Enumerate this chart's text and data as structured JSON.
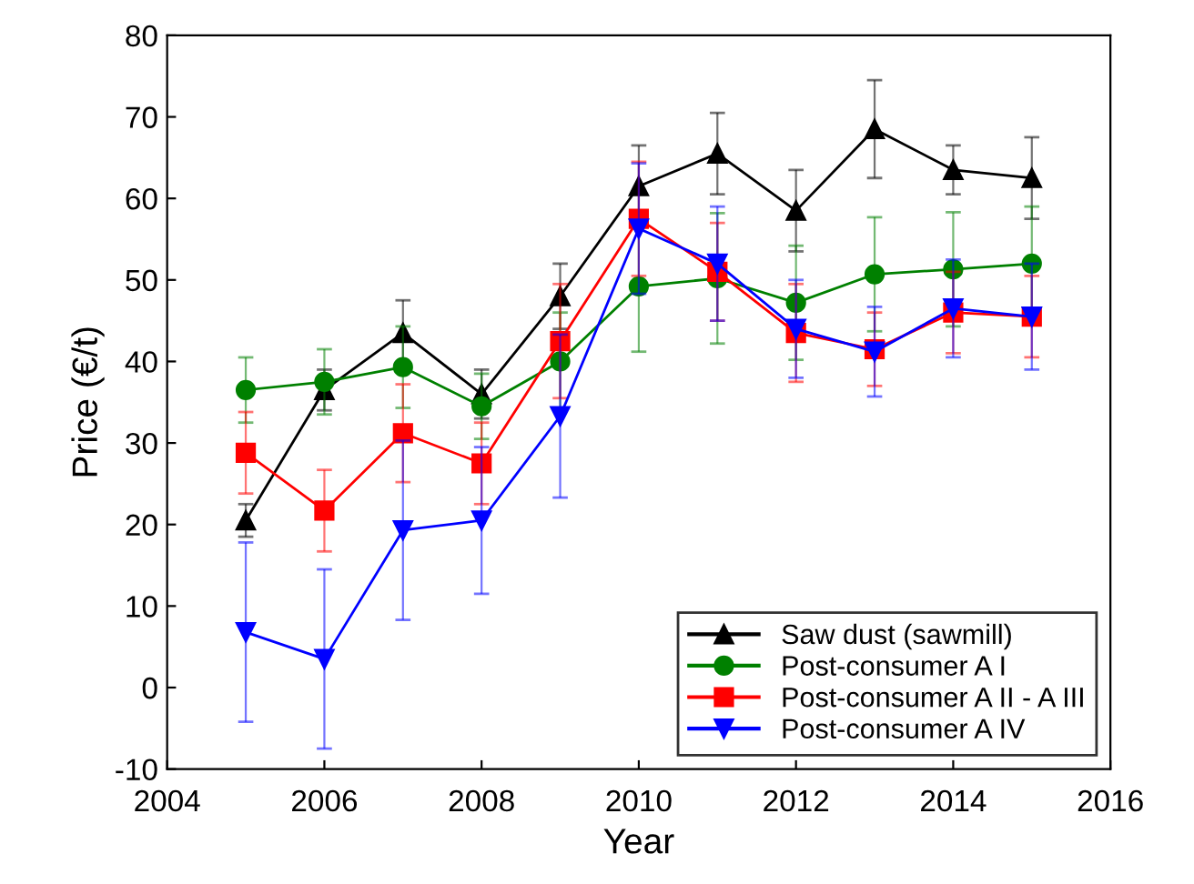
{
  "chart_data": {
    "type": "line",
    "xlabel": "Year",
    "ylabel": "Price (€/t)",
    "x": [
      2005,
      2006,
      2007,
      2008,
      2009,
      2010,
      2011,
      2012,
      2013,
      2014,
      2015
    ],
    "xlim": [
      2004,
      2016
    ],
    "xticks": [
      2004,
      2006,
      2008,
      2010,
      2012,
      2014,
      2016
    ],
    "ylim": [
      -10,
      80
    ],
    "yticks": [
      -10,
      0,
      10,
      20,
      30,
      40,
      50,
      60,
      70,
      80
    ],
    "grid": false,
    "legend": "bottom right",
    "line_style": "solid",
    "series": [
      {
        "name": "Saw dust (sawmill)",
        "color": "#000000",
        "marker": "triangle",
        "values": [
          20.5,
          36.5,
          43.5,
          36,
          48,
          61.5,
          65.5,
          58.5,
          68.5,
          63.5,
          62.5
        ],
        "errors": [
          2,
          2.5,
          4,
          3,
          4,
          5,
          5,
          5,
          6,
          3,
          5
        ]
      },
      {
        "name": "Post-consumer A I",
        "color": "#008000",
        "marker": "circle",
        "values": [
          36.5,
          37.5,
          39.3,
          34.5,
          40,
          49.2,
          50.2,
          47.2,
          50.7,
          51.3,
          52
        ],
        "errors": [
          4,
          4,
          5,
          4,
          6,
          8,
          8,
          7,
          7,
          7,
          7
        ]
      },
      {
        "name": "Post-consumer A II - A III",
        "color": "#ff0000",
        "marker": "square",
        "values": [
          28.8,
          21.7,
          31.2,
          27.5,
          42.5,
          57.5,
          51,
          43.5,
          41.5,
          46,
          45.5
        ],
        "errors": [
          5,
          5,
          6,
          5,
          7,
          7,
          6,
          6,
          4.5,
          5,
          5
        ]
      },
      {
        "name": "Post-consumer A IV",
        "color": "#0000ff",
        "marker": "triangle_down",
        "values": [
          6.8,
          3.5,
          19.3,
          20.5,
          33.3,
          56.3,
          52,
          44,
          41.2,
          46.5,
          45.5
        ],
        "errors": [
          11,
          11,
          11,
          9,
          10,
          8,
          7,
          6,
          5.5,
          6,
          6.5
        ]
      }
    ]
  }
}
